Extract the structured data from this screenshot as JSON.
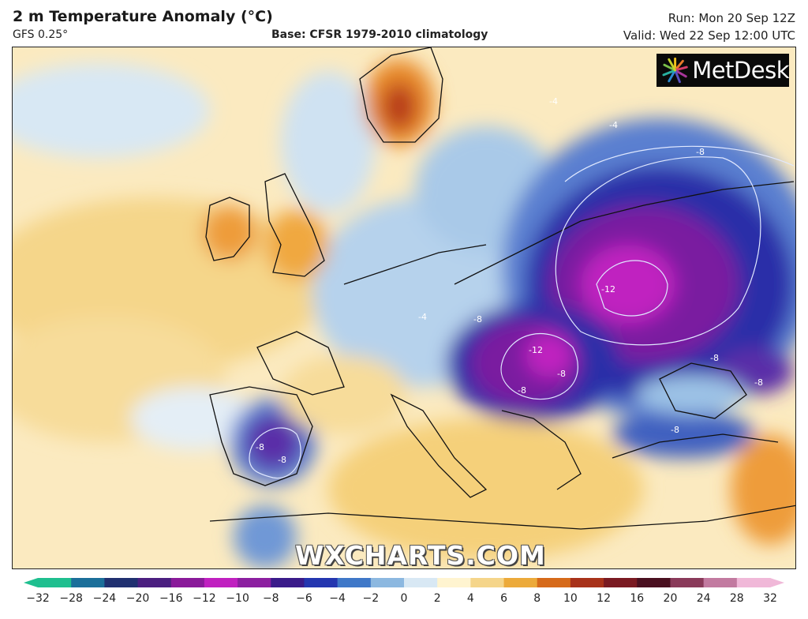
{
  "header": {
    "title": "2 m Temperature Anomaly (°C)",
    "model": "GFS 0.25°",
    "base": "Base: CFSR 1979-2010 climatology",
    "run": "Run: Mon 20 Sep 12Z",
    "valid": "Valid: Wed 22 Sep 12:00 UTC"
  },
  "logo": {
    "text": "MetDesk"
  },
  "watermark": "WXCHARTS.COM",
  "contour_labels": [
    "-4",
    "-4",
    "-4",
    "-8",
    "-12",
    "-8",
    "-12",
    "-8",
    "-8",
    "-8",
    "-8",
    "-8",
    "-8",
    "-8"
  ],
  "colorbar": {
    "ticks": [
      "−32",
      "−28",
      "−24",
      "−20",
      "−16",
      "−12",
      "−10",
      "−8",
      "−6",
      "−4",
      "−2",
      "0",
      "2",
      "4",
      "6",
      "8",
      "10",
      "12",
      "16",
      "20",
      "24",
      "28",
      "32"
    ],
    "colors": [
      "#1fbf8f",
      "#1b6f9a",
      "#203070",
      "#4b1f80",
      "#8a1a9a",
      "#c020c0",
      "#8c1fa0",
      "#3a1b8a",
      "#2436b0",
      "#3f78c8",
      "#8cb8e0",
      "#d8e8f4",
      "#fff4d0",
      "#f5d58a",
      "#ecaa3a",
      "#d66a1a",
      "#a8321a",
      "#7a1a22",
      "#4a1020",
      "#8a3a5a",
      "#c27aa0",
      "#f0b8d8"
    ]
  }
}
